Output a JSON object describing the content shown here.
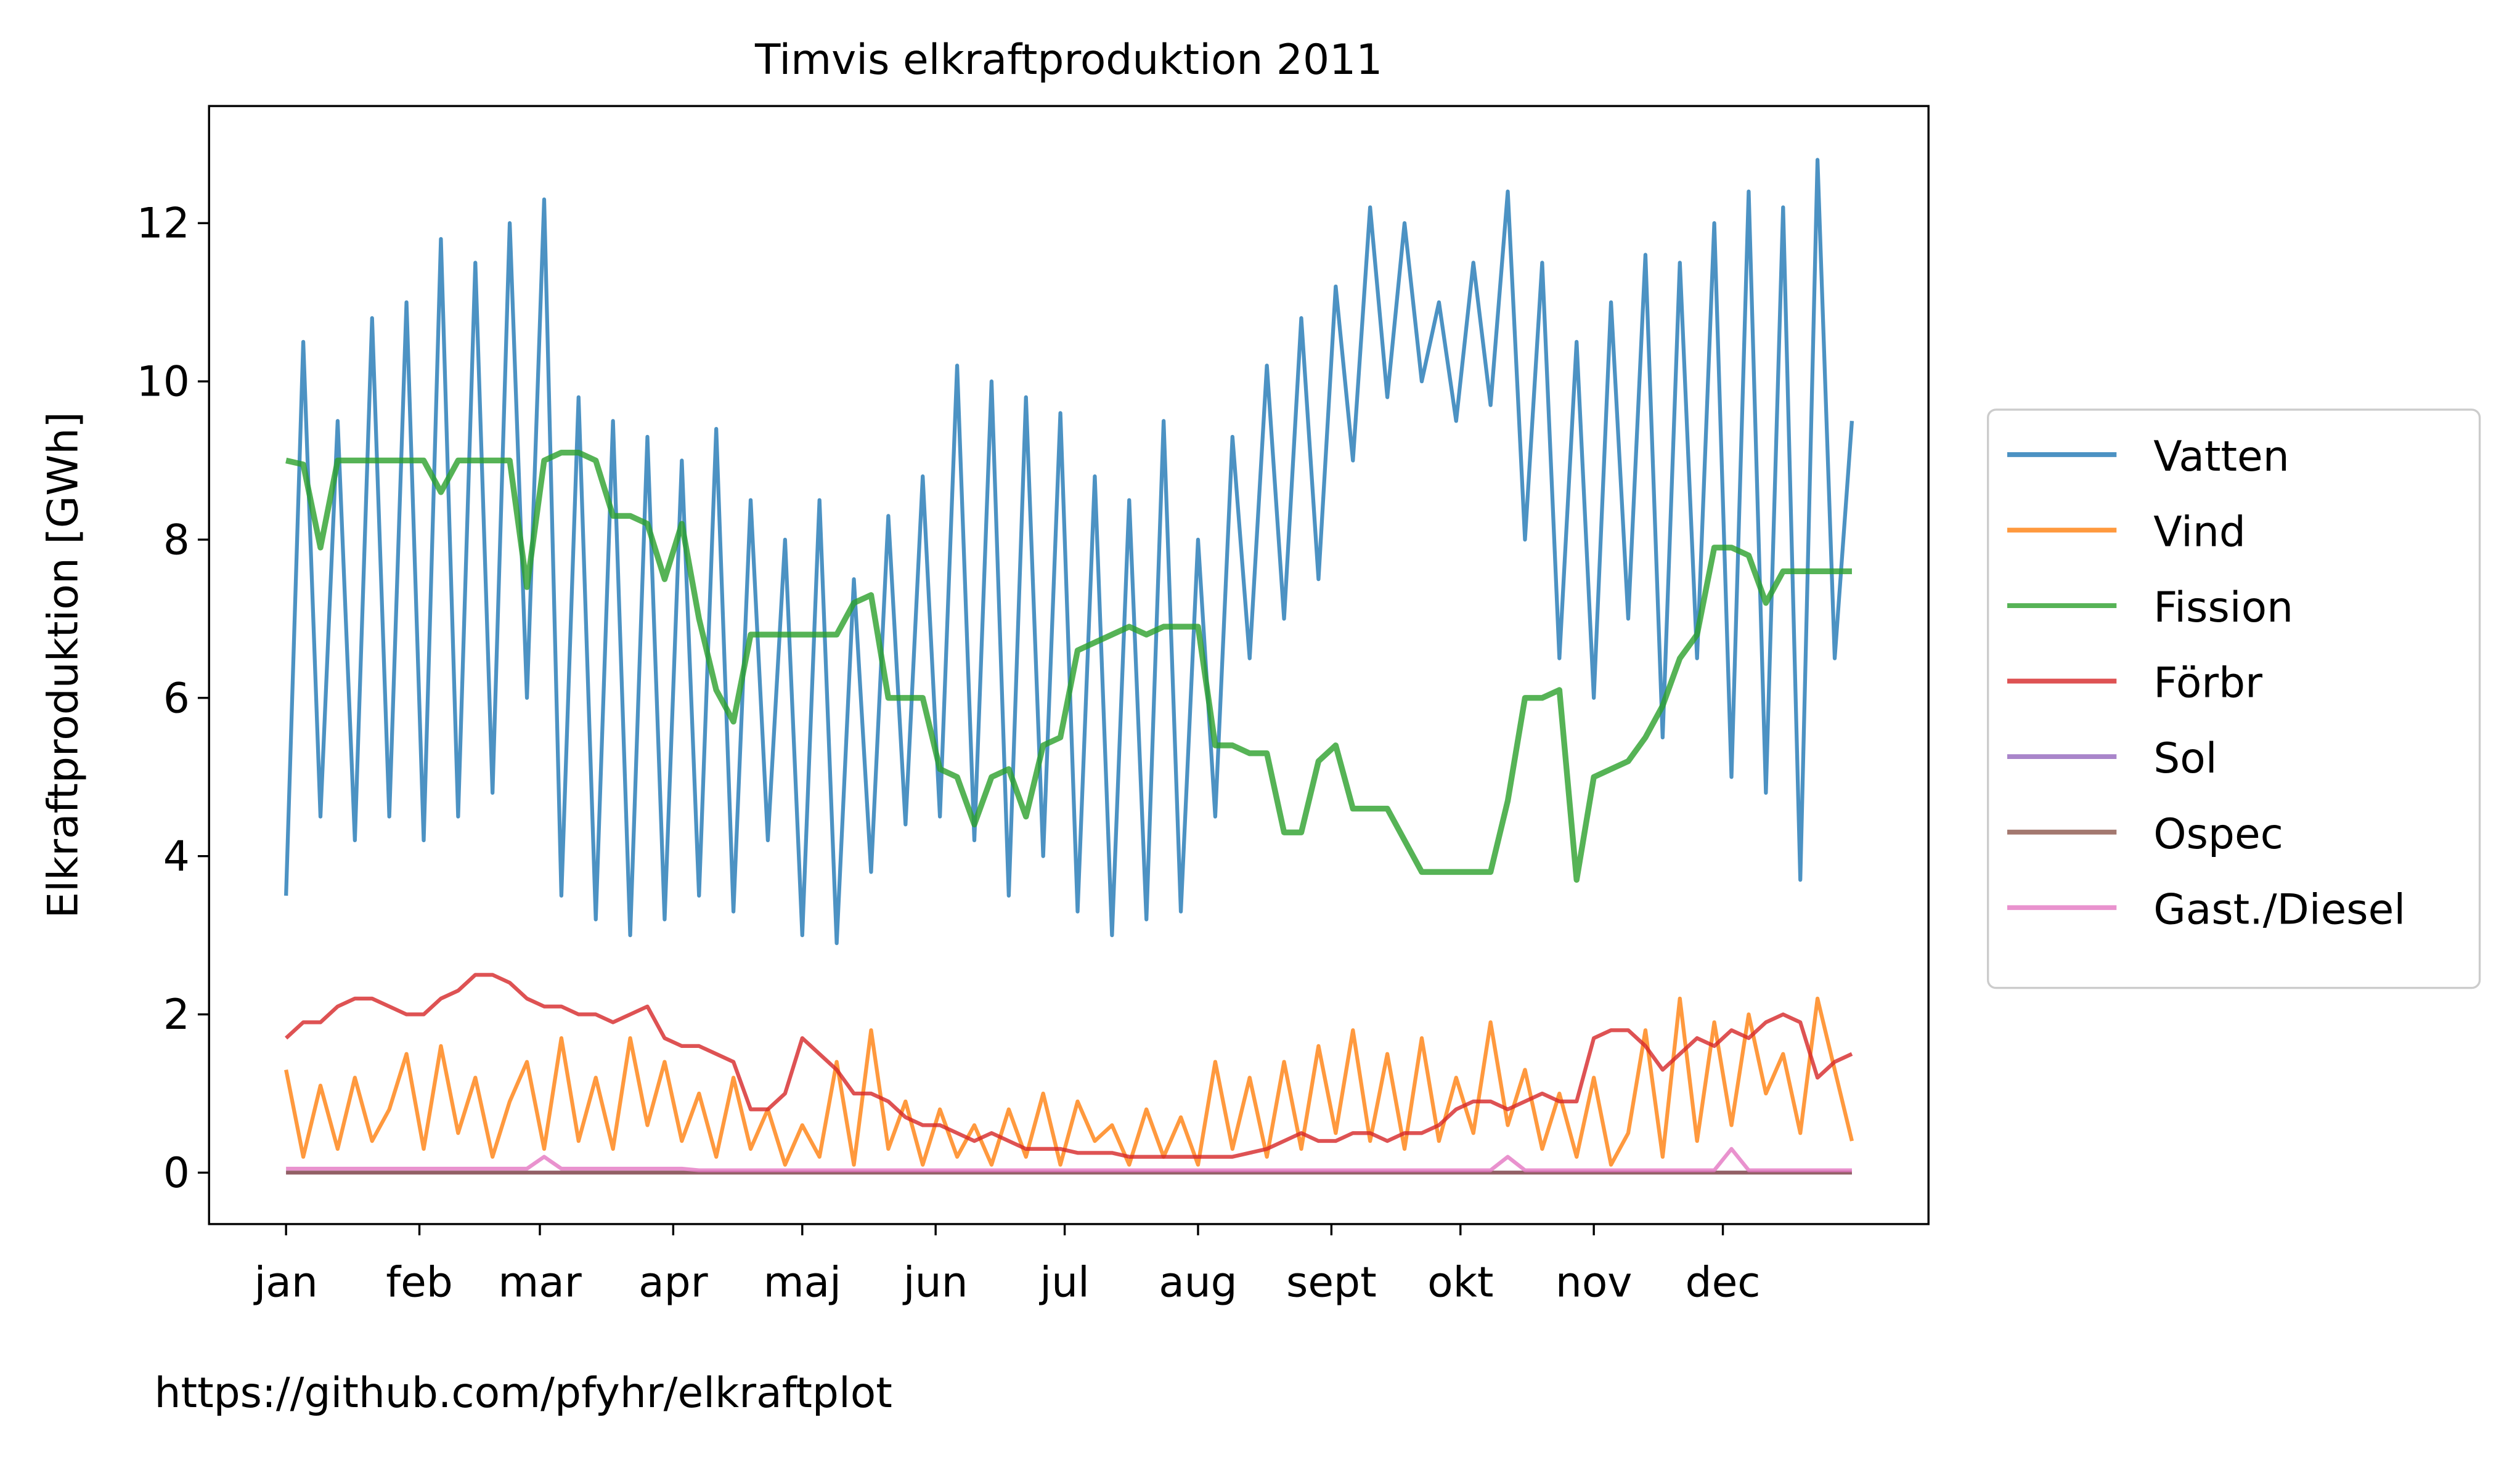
{
  "chart_data": {
    "type": "line",
    "title": "Timvis elkraftproduktion 2011",
    "ylabel": "Elkraftproduktion [GWh]",
    "annotation": "https://github.com/pfyhr/elkraftplot",
    "legend_position": "right",
    "xlim": [
      -17.9,
      381.8
    ],
    "ylim": [
      -0.65,
      13.48
    ],
    "yticks": [
      0,
      2,
      4,
      6,
      8,
      10,
      12
    ],
    "xticks": [
      {
        "value": 0,
        "label": "jan"
      },
      {
        "value": 31,
        "label": "feb"
      },
      {
        "value": 59,
        "label": "mar"
      },
      {
        "value": 90,
        "label": "apr"
      },
      {
        "value": 120,
        "label": "maj"
      },
      {
        "value": 151,
        "label": "jun"
      },
      {
        "value": 181,
        "label": "jul"
      },
      {
        "value": 212,
        "label": "aug"
      },
      {
        "value": 243,
        "label": "sept"
      },
      {
        "value": 273,
        "label": "okt"
      },
      {
        "value": 304,
        "label": "nov"
      },
      {
        "value": 334,
        "label": "dec"
      }
    ],
    "x": [
      0,
      4,
      8,
      12,
      16,
      20,
      24,
      28,
      32,
      36,
      40,
      44,
      48,
      52,
      56,
      60,
      64,
      68,
      72,
      76,
      80,
      84,
      88,
      92,
      96,
      100,
      104,
      108,
      112,
      116,
      120,
      124,
      128,
      132,
      136,
      140,
      144,
      148,
      152,
      156,
      160,
      164,
      168,
      172,
      176,
      180,
      184,
      188,
      192,
      196,
      200,
      204,
      208,
      212,
      216,
      220,
      224,
      228,
      232,
      236,
      240,
      244,
      248,
      252,
      256,
      260,
      264,
      268,
      272,
      276,
      280,
      284,
      288,
      292,
      296,
      300,
      304,
      308,
      312,
      316,
      320,
      324,
      328,
      332,
      336,
      340,
      344,
      348,
      352,
      356,
      360,
      364
    ],
    "series": [
      {
        "name": "Vatten",
        "color": "#1f77b4",
        "values": [
          3.5,
          10.5,
          4.5,
          9.5,
          4.2,
          10.8,
          4.5,
          11,
          4.2,
          11.8,
          4.5,
          11.5,
          4.8,
          12,
          6,
          12.3,
          3.5,
          9.8,
          3.2,
          9.5,
          3.0,
          9.3,
          3.2,
          9.0,
          3.5,
          9.4,
          3.3,
          8.5,
          4.2,
          8.0,
          3.0,
          8.5,
          2.9,
          7.5,
          3.8,
          8.3,
          4.4,
          8.8,
          4.5,
          10.2,
          4.2,
          10.0,
          3.5,
          9.8,
          4.0,
          9.6,
          3.3,
          8.8,
          3.0,
          8.5,
          3.2,
          9.5,
          3.3,
          8.0,
          4.5,
          9.3,
          6.5,
          10.2,
          7.0,
          10.8,
          7.5,
          11.2,
          9.0,
          12.2,
          9.8,
          12.0,
          10.0,
          11.0,
          9.5,
          11.5,
          9.7,
          12.4,
          8.0,
          11.5,
          6.5,
          10.5,
          6.0,
          11.0,
          7.0,
          11.6,
          5.5,
          11.5,
          6.5,
          12.0,
          5.0,
          12.4,
          4.8,
          12.2,
          3.7,
          12.8,
          6.5,
          9.5
        ]
      },
      {
        "name": "Vind",
        "color": "#ff7f0e",
        "values": [
          1.3,
          0.2,
          1.1,
          0.3,
          1.2,
          0.4,
          0.8,
          1.5,
          0.3,
          1.6,
          0.5,
          1.2,
          0.2,
          0.9,
          1.4,
          0.3,
          1.7,
          0.4,
          1.2,
          0.3,
          1.7,
          0.6,
          1.4,
          0.4,
          1.0,
          0.2,
          1.2,
          0.3,
          0.8,
          0.1,
          0.6,
          0.2,
          1.4,
          0.1,
          1.8,
          0.3,
          0.9,
          0.1,
          0.8,
          0.2,
          0.6,
          0.1,
          0.8,
          0.2,
          1.0,
          0.1,
          0.9,
          0.4,
          0.6,
          0.1,
          0.8,
          0.2,
          0.7,
          0.1,
          1.4,
          0.3,
          1.2,
          0.2,
          1.4,
          0.3,
          1.6,
          0.5,
          1.8,
          0.4,
          1.5,
          0.3,
          1.7,
          0.4,
          1.2,
          0.5,
          1.9,
          0.6,
          1.3,
          0.3,
          1.0,
          0.2,
          1.2,
          0.1,
          0.5,
          1.8,
          0.2,
          2.2,
          0.4,
          1.9,
          0.6,
          2.0,
          1.0,
          1.5,
          0.5,
          2.2,
          1.3,
          0.4
        ]
      },
      {
        "name": "Fission",
        "color": "#2ca02c",
        "values": [
          9.0,
          8.95,
          7.9,
          9.0,
          9.0,
          9.0,
          9.0,
          9.0,
          9.0,
          8.6,
          9.0,
          9.0,
          9.0,
          9.0,
          7.4,
          9.0,
          9.1,
          9.1,
          9.0,
          8.3,
          8.3,
          8.2,
          7.5,
          8.2,
          7.0,
          6.1,
          5.7,
          6.8,
          6.8,
          6.8,
          6.8,
          6.8,
          6.8,
          7.2,
          7.3,
          6.0,
          6.0,
          6.0,
          5.1,
          5.0,
          4.4,
          5.0,
          5.1,
          4.5,
          5.4,
          5.5,
          6.6,
          6.7,
          6.8,
          6.9,
          6.8,
          6.9,
          6.9,
          6.9,
          5.4,
          5.4,
          5.3,
          5.3,
          4.3,
          4.3,
          5.2,
          5.4,
          4.6,
          4.6,
          4.6,
          4.2,
          3.8,
          3.8,
          3.8,
          3.8,
          3.8,
          4.7,
          6.0,
          6.0,
          6.1,
          3.7,
          5.0,
          5.1,
          5.2,
          5.5,
          5.9,
          6.5,
          6.8,
          7.9,
          7.9,
          7.8,
          7.2,
          7.6,
          7.6,
          7.6,
          7.6,
          7.6
        ]
      },
      {
        "name": "Förbr",
        "color": "#d62728",
        "values": [
          1.7,
          1.9,
          1.9,
          2.1,
          2.2,
          2.2,
          2.1,
          2.0,
          2.0,
          2.2,
          2.3,
          2.5,
          2.5,
          2.4,
          2.2,
          2.1,
          2.1,
          2.0,
          2.0,
          1.9,
          2.0,
          2.1,
          1.7,
          1.6,
          1.6,
          1.5,
          1.4,
          0.8,
          0.8,
          1.0,
          1.7,
          1.5,
          1.3,
          1.0,
          1.0,
          0.9,
          0.7,
          0.6,
          0.6,
          0.5,
          0.4,
          0.5,
          0.4,
          0.3,
          0.3,
          0.3,
          0.25,
          0.25,
          0.25,
          0.2,
          0.2,
          0.2,
          0.2,
          0.2,
          0.2,
          0.2,
          0.25,
          0.3,
          0.4,
          0.5,
          0.4,
          0.4,
          0.5,
          0.5,
          0.4,
          0.5,
          0.5,
          0.6,
          0.8,
          0.9,
          0.9,
          0.8,
          0.9,
          1.0,
          0.9,
          0.9,
          1.7,
          1.8,
          1.8,
          1.6,
          1.3,
          1.5,
          1.7,
          1.6,
          1.8,
          1.7,
          1.9,
          2.0,
          1.9,
          1.2,
          1.4,
          1.5
        ]
      },
      {
        "name": "Sol",
        "color": "#9467bd",
        "values": [
          0,
          0,
          0,
          0,
          0,
          0,
          0,
          0,
          0,
          0,
          0,
          0,
          0,
          0,
          0,
          0,
          0,
          0,
          0,
          0,
          0,
          0,
          0,
          0,
          0,
          0,
          0,
          0,
          0,
          0,
          0,
          0,
          0,
          0,
          0,
          0,
          0,
          0,
          0,
          0,
          0,
          0,
          0,
          0,
          0,
          0,
          0,
          0,
          0,
          0,
          0,
          0,
          0,
          0,
          0,
          0,
          0,
          0,
          0,
          0,
          0,
          0,
          0,
          0,
          0,
          0,
          0,
          0,
          0,
          0,
          0,
          0,
          0,
          0,
          0,
          0,
          0,
          0,
          0,
          0,
          0,
          0,
          0,
          0,
          0,
          0,
          0,
          0,
          0,
          0,
          0,
          0
        ]
      },
      {
        "name": "Ospec",
        "color": "#8c564b",
        "values": [
          0,
          0,
          0,
          0,
          0,
          0,
          0,
          0,
          0,
          0,
          0,
          0,
          0,
          0,
          0,
          0,
          0,
          0,
          0,
          0,
          0,
          0,
          0,
          0,
          0,
          0,
          0,
          0,
          0,
          0,
          0,
          0,
          0,
          0,
          0,
          0,
          0,
          0,
          0,
          0,
          0,
          0,
          0,
          0,
          0,
          0,
          0,
          0,
          0,
          0,
          0,
          0,
          0,
          0,
          0,
          0,
          0,
          0,
          0,
          0,
          0,
          0,
          0,
          0,
          0,
          0,
          0,
          0,
          0,
          0,
          0,
          0,
          0,
          0,
          0,
          0,
          0,
          0,
          0,
          0,
          0,
          0,
          0,
          0,
          0,
          0,
          0,
          0,
          0,
          0,
          0,
          0
        ]
      },
      {
        "name": "Gast./Diesel",
        "color": "#e377c2",
        "values": [
          0.05,
          0.05,
          0.05,
          0.05,
          0.05,
          0.05,
          0.05,
          0.05,
          0.05,
          0.05,
          0.05,
          0.05,
          0.05,
          0.05,
          0.05,
          0.2,
          0.05,
          0.05,
          0.05,
          0.05,
          0.05,
          0.05,
          0.05,
          0.05,
          0.03,
          0.03,
          0.03,
          0.03,
          0.03,
          0.03,
          0.03,
          0.03,
          0.03,
          0.03,
          0.03,
          0.03,
          0.03,
          0.03,
          0.03,
          0.03,
          0.03,
          0.03,
          0.03,
          0.03,
          0.03,
          0.03,
          0.03,
          0.03,
          0.03,
          0.03,
          0.03,
          0.03,
          0.03,
          0.03,
          0.03,
          0.03,
          0.03,
          0.03,
          0.03,
          0.03,
          0.03,
          0.03,
          0.03,
          0.03,
          0.03,
          0.03,
          0.03,
          0.03,
          0.03,
          0.03,
          0.03,
          0.2,
          0.03,
          0.03,
          0.03,
          0.03,
          0.03,
          0.03,
          0.03,
          0.03,
          0.03,
          0.03,
          0.03,
          0.03,
          0.3,
          0.03,
          0.03,
          0.03,
          0.03,
          0.03,
          0.03,
          0.03
        ]
      }
    ]
  }
}
